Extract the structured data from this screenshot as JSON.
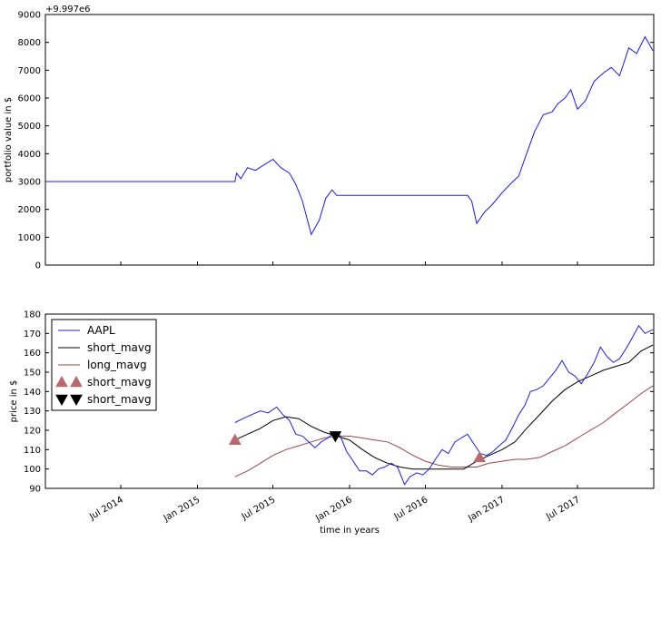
{
  "chart_data": [
    {
      "type": "line",
      "ylabel": "portfolio value in $",
      "offset_text": "+9.997e6",
      "yticks": [
        "0",
        "1000",
        "2000",
        "3000",
        "4000",
        "5000",
        "6000",
        "7000",
        "8000",
        "9000"
      ],
      "ylim": [
        0,
        9000
      ],
      "x": [
        "2014-01-01",
        "2015-04-01",
        "2015-04-05",
        "2015-04-15",
        "2015-05-01",
        "2015-05-20",
        "2015-06-10",
        "2015-07-01",
        "2015-07-20",
        "2015-08-10",
        "2015-08-25",
        "2015-09-10",
        "2015-10-01",
        "2015-10-20",
        "2015-11-05",
        "2015-11-20",
        "2015-12-01",
        "2016-10-10",
        "2016-10-20",
        "2016-11-01",
        "2016-11-20",
        "2016-12-10",
        "2017-01-01",
        "2017-01-20",
        "2017-02-10",
        "2017-03-01",
        "2017-03-20",
        "2017-04-10",
        "2017-05-01",
        "2017-05-15",
        "2017-06-01",
        "2017-06-15",
        "2017-07-01",
        "2017-07-20",
        "2017-08-10",
        "2017-09-01",
        "2017-09-20",
        "2017-10-10",
        "2017-11-01",
        "2017-11-20",
        "2017-12-10",
        "2017-12-29"
      ],
      "series": [
        {
          "values": [
            3000,
            3000,
            3300,
            3100,
            3500,
            3400,
            3600,
            3800,
            3500,
            3300,
            2900,
            2300,
            1100,
            1600,
            2400,
            2700,
            2500,
            2500,
            2300,
            1500,
            1900,
            2200,
            2600,
            2900,
            3200,
            4000,
            4800,
            5400,
            5500,
            5800,
            6000,
            6300,
            5600,
            5900,
            6600,
            6900,
            7100,
            6800,
            7800,
            7600,
            8200,
            7700
          ]
        }
      ]
    },
    {
      "type": "line",
      "xlabel": "time in years",
      "ylabel": "price in $",
      "yticks": [
        "90",
        "100",
        "110",
        "120",
        "130",
        "140",
        "150",
        "160",
        "170",
        "180"
      ],
      "ylim": [
        90,
        180
      ],
      "xticks": [
        "Jul 2014",
        "Jan 2015",
        "Jul 2015",
        "Jan 2016",
        "Jul 2016",
        "Jan 2017",
        "Jul 2017"
      ],
      "legend": [
        "AAPL",
        "short_mavg",
        "long_mavg",
        "short_mavg",
        "short_mavg"
      ],
      "legend_position": "top-left",
      "series": [
        {
          "name": "AAPL",
          "x": [
            "2015-04-01",
            "2015-04-20",
            "2015-05-10",
            "2015-06-01",
            "2015-06-20",
            "2015-07-10",
            "2015-07-25",
            "2015-08-10",
            "2015-08-25",
            "2015-09-10",
            "2015-09-25",
            "2015-10-10",
            "2015-10-25",
            "2015-11-10",
            "2015-11-25",
            "2015-12-10",
            "2015-12-25",
            "2016-01-10",
            "2016-01-25",
            "2016-02-10",
            "2016-02-25",
            "2016-03-10",
            "2016-03-25",
            "2016-04-10",
            "2016-04-25",
            "2016-05-12",
            "2016-05-25",
            "2016-06-10",
            "2016-06-25",
            "2016-07-10",
            "2016-07-25",
            "2016-08-10",
            "2016-08-25",
            "2016-09-10",
            "2016-09-25",
            "2016-10-10",
            "2016-10-25",
            "2016-11-10",
            "2016-11-25",
            "2016-12-10",
            "2016-12-25",
            "2017-01-10",
            "2017-01-25",
            "2017-02-10",
            "2017-02-25",
            "2017-03-10",
            "2017-03-25",
            "2017-04-10",
            "2017-04-25",
            "2017-05-10",
            "2017-05-25",
            "2017-06-10",
            "2017-06-25",
            "2017-07-10",
            "2017-07-25",
            "2017-08-10",
            "2017-08-25",
            "2017-09-10",
            "2017-09-25",
            "2017-10-10",
            "2017-10-25",
            "2017-11-10",
            "2017-11-25",
            "2017-12-10",
            "2017-12-29"
          ],
          "values": [
            124,
            126,
            128,
            130,
            129,
            132,
            128,
            125,
            118,
            117,
            114,
            111,
            114,
            116,
            119,
            117,
            109,
            104,
            99,
            99,
            97,
            100,
            101,
            103,
            101,
            92,
            96,
            98,
            97,
            100,
            105,
            110,
            108,
            114,
            116,
            118,
            113,
            108,
            107,
            109,
            112,
            115,
            121,
            128,
            133,
            140,
            141,
            143,
            147,
            151,
            156,
            150,
            148,
            144,
            149,
            155,
            163,
            158,
            155,
            157,
            162,
            168,
            174,
            170,
            172
          ]
        },
        {
          "name": "short_mavg",
          "x": [
            "2015-04-01",
            "2015-05-01",
            "2015-06-01",
            "2015-07-01",
            "2015-08-01",
            "2015-09-01",
            "2015-10-01",
            "2015-11-01",
            "2015-12-01",
            "2016-01-01",
            "2016-02-01",
            "2016-03-01",
            "2016-04-01",
            "2016-05-01",
            "2016-06-01",
            "2016-07-01",
            "2016-08-01",
            "2016-09-01",
            "2016-10-01",
            "2016-11-01",
            "2016-12-01",
            "2017-01-01",
            "2017-02-01",
            "2017-03-01",
            "2017-04-01",
            "2017-05-01",
            "2017-06-01",
            "2017-07-01",
            "2017-08-01",
            "2017-09-01",
            "2017-10-01",
            "2017-11-01",
            "2017-12-01",
            "2017-12-29"
          ],
          "values": [
            115,
            118,
            121,
            125,
            127,
            126,
            122,
            119,
            117,
            115,
            110,
            106,
            103,
            101,
            100,
            100,
            100,
            100,
            100,
            104,
            107,
            110,
            114,
            121,
            128,
            135,
            141,
            145,
            148,
            151,
            153,
            155,
            161,
            164
          ]
        },
        {
          "name": "long_mavg",
          "x": [
            "2015-04-01",
            "2015-05-01",
            "2015-06-01",
            "2015-07-01",
            "2015-08-01",
            "2015-09-01",
            "2015-10-01",
            "2015-11-01",
            "2015-12-01",
            "2016-01-01",
            "2016-02-01",
            "2016-03-01",
            "2016-04-01",
            "2016-05-01",
            "2016-06-01",
            "2016-07-01",
            "2016-08-01",
            "2016-09-01",
            "2016-10-01",
            "2016-11-01",
            "2016-12-01",
            "2017-01-01",
            "2017-02-01",
            "2017-03-01",
            "2017-04-01",
            "2017-05-01",
            "2017-06-01",
            "2017-07-01",
            "2017-08-01",
            "2017-09-01",
            "2017-10-01",
            "2017-11-01",
            "2017-12-01",
            "2017-12-29"
          ],
          "values": [
            96,
            99,
            103,
            107,
            110,
            112,
            114,
            116,
            117,
            117,
            116,
            115,
            114,
            111,
            107,
            104,
            102,
            101,
            101,
            101,
            103,
            104,
            105,
            105,
            106,
            109,
            112,
            116,
            120,
            124,
            129,
            134,
            139,
            143
          ]
        }
      ],
      "markers": [
        {
          "name": "short_mavg",
          "shape": "triangle-up",
          "points": [
            {
              "x": "2015-04-01",
              "y": 115
            },
            {
              "x": "2016-11-08",
              "y": 106
            }
          ]
        },
        {
          "name": "short_mavg",
          "shape": "triangle-down",
          "points": [
            {
              "x": "2015-11-28",
              "y": 117
            }
          ]
        }
      ]
    }
  ],
  "colors": {
    "aapl": "#1f1fe0",
    "short_mavg": "#000000",
    "long_mavg": "#a0444a",
    "buy_marker": "#b86a6e",
    "sell_marker": "#000000",
    "portfolio": "#1a1ae6"
  }
}
